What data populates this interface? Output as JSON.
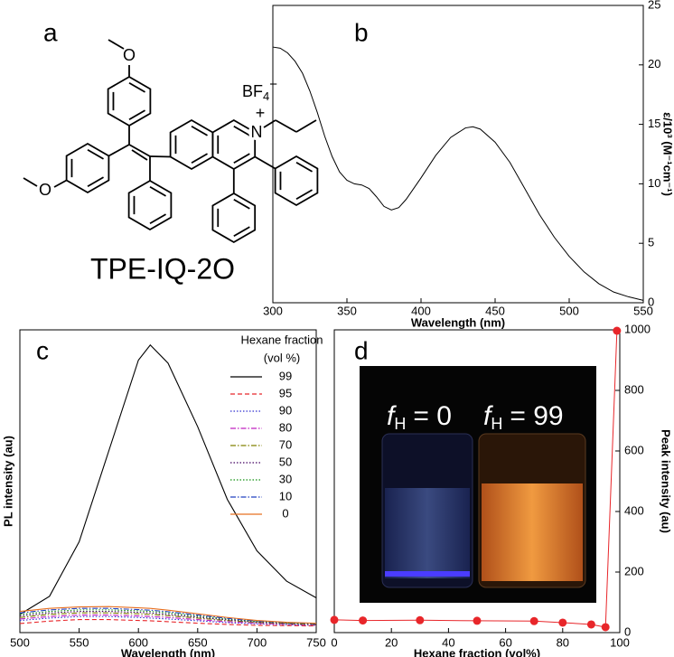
{
  "structure": {
    "panel_label": "a",
    "name": "TPE-IQ-2O",
    "atoms": [
      "O",
      "O",
      "N"
    ],
    "charge": "+",
    "counterion": {
      "formula": "BF",
      "subscript": "4",
      "charge": "−"
    }
  },
  "chart_data": [
    {
      "type": "line",
      "panel_label": "b",
      "x": [
        300,
        305,
        310,
        315,
        320,
        325,
        330,
        335,
        340,
        345,
        350,
        355,
        360,
        365,
        370,
        375,
        380,
        385,
        390,
        400,
        410,
        420,
        430,
        435,
        440,
        450,
        460,
        470,
        480,
        490,
        500,
        510,
        520,
        530,
        540,
        550
      ],
      "values": [
        21.5,
        21.4,
        21.0,
        20.3,
        19.3,
        17.8,
        16.0,
        14.0,
        12.3,
        11.0,
        10.3,
        10.0,
        9.9,
        9.6,
        8.9,
        8.1,
        7.8,
        8.0,
        8.7,
        10.5,
        12.4,
        13.9,
        14.7,
        14.8,
        14.6,
        13.5,
        11.8,
        9.6,
        7.4,
        5.5,
        3.9,
        2.6,
        1.6,
        0.9,
        0.5,
        0.2
      ],
      "color": "#000000",
      "xlim": [
        300,
        550
      ],
      "xticks": [
        300,
        350,
        400,
        450,
        500,
        550
      ],
      "ylim": [
        0,
        25
      ],
      "yticks": [
        0,
        5,
        10,
        15,
        20,
        25
      ],
      "y_axis_side": "right",
      "xlabel": "Wavelength (nm)",
      "ylabel": "ε/10³ (M⁻¹cm⁻¹)"
    },
    {
      "type": "line",
      "panel_label": "c",
      "x": [
        500,
        525,
        550,
        575,
        600,
        610,
        625,
        650,
        675,
        700,
        725,
        750
      ],
      "series": [
        {
          "name": "99",
          "color": "#000000",
          "dash": "solid",
          "values": [
            6,
            12,
            30,
            60,
            90,
            95,
            89,
            68,
            44,
            27,
            17,
            11.5
          ]
        },
        {
          "name": "95",
          "color": "#e8262a",
          "dash": "dashed",
          "values": [
            3,
            3.8,
            4.3,
            4.3,
            4,
            3.9,
            3.6,
            3.1,
            2.7,
            2.4,
            2.3,
            2.2
          ]
        },
        {
          "name": "90",
          "color": "#3030d0",
          "dash": "dotted",
          "values": [
            4,
            4.8,
            5.3,
            5.3,
            5,
            4.8,
            4.5,
            3.9,
            3.3,
            2.9,
            2.6,
            2.4
          ]
        },
        {
          "name": "80",
          "color": "#c020c0",
          "dash": "dashdot",
          "values": [
            4.5,
            5.3,
            5.8,
            5.8,
            5.5,
            5.3,
            5,
            4.3,
            3.6,
            3.1,
            2.8,
            2.5
          ]
        },
        {
          "name": "70",
          "color": "#808000",
          "dash": "dashdot",
          "values": [
            5,
            6,
            6.5,
            6.5,
            6.2,
            6,
            5.6,
            4.8,
            4,
            3.4,
            3,
            2.7
          ]
        },
        {
          "name": "50",
          "color": "#400060",
          "dash": "dotted",
          "values": [
            5.5,
            6.5,
            7,
            7,
            6.7,
            6.5,
            6,
            5.1,
            4.2,
            3.5,
            3.1,
            2.8
          ]
        },
        {
          "name": "30",
          "color": "#109010",
          "dash": "dotted",
          "values": [
            6,
            7,
            7.5,
            7.5,
            7.2,
            7,
            6.5,
            5.5,
            4.5,
            3.7,
            3.2,
            2.9
          ]
        },
        {
          "name": "10",
          "color": "#2040c0",
          "dash": "dashdot",
          "values": [
            6.5,
            7.5,
            8,
            8,
            7.6,
            7.4,
            6.9,
            5.8,
            4.7,
            3.8,
            3.3,
            3
          ]
        },
        {
          "name": "0",
          "color": "#e87020",
          "dash": "solid",
          "values": [
            7,
            8,
            8.5,
            8.6,
            8.2,
            8,
            7.4,
            6.2,
            5,
            4,
            3.4,
            3.1
          ]
        }
      ],
      "xlim": [
        500,
        750
      ],
      "xticks": [
        500,
        550,
        600,
        650,
        700,
        750
      ],
      "ylim": [
        0,
        100
      ],
      "xlabel": "Wavelength (nm)",
      "ylabel": "PL intensity (au)",
      "legend": "upper right",
      "legend_title": "Hexane fraction",
      "legend_subtitle": "(vol %)"
    },
    {
      "type": "scatter",
      "panel_label": "d",
      "x": [
        0,
        10,
        30,
        50,
        70,
        80,
        90,
        95,
        99
      ],
      "values": [
        42,
        40,
        41,
        39,
        38,
        33,
        27,
        18,
        997
      ],
      "color": "#e8262a",
      "connect": true,
      "xlim": [
        0,
        100
      ],
      "xticks": [
        0,
        20,
        40,
        60,
        80,
        100
      ],
      "ylim": [
        0,
        1000
      ],
      "yticks": [
        0,
        200,
        400,
        600,
        800,
        1000
      ],
      "y_axis_side": "right",
      "xlabel": "Hexane fraction (vol%)",
      "ylabel": "Peak intensity (au)",
      "inset": {
        "labels": [
          {
            "symbol": "f",
            "subscript": "H",
            "text": "= 0"
          },
          {
            "symbol": "f",
            "subscript": "H",
            "text": "= 99"
          }
        ]
      }
    }
  ]
}
